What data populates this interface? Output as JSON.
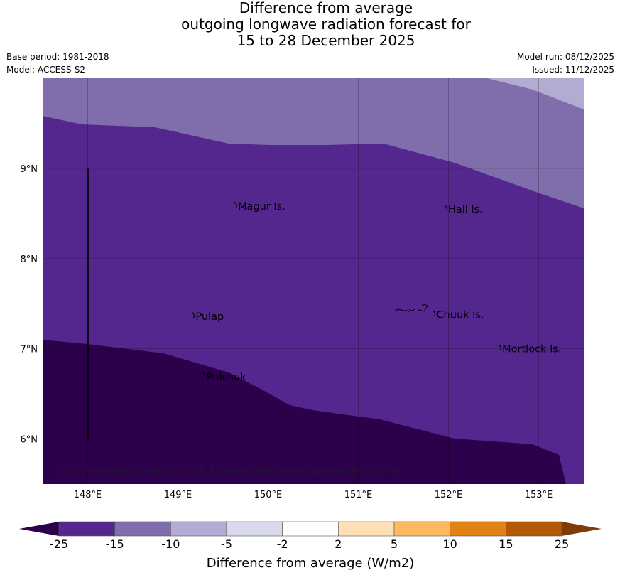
{
  "title": "Difference from average\noutgoing longwave radiation forecast for\n15 to 28 December 2025",
  "meta_left": {
    "base_period": "Base period: 1981-2018",
    "model": "Model: ACCESS-S2"
  },
  "meta_right": {
    "model_run": "Model run: 08/12/2025",
    "issued": "Issued: 11/12/2025"
  },
  "map": {
    "lon_range": [
      147.5,
      153.5
    ],
    "lat_range": [
      5.5,
      10.0
    ],
    "lat_labels": [
      {
        "value": 9,
        "text": "9°N"
      },
      {
        "value": 8,
        "text": "8°N"
      },
      {
        "value": 7,
        "text": "7°N"
      },
      {
        "value": 6,
        "text": "6°N"
      }
    ],
    "lon_labels": [
      {
        "value": 148,
        "text": "148°E"
      },
      {
        "value": 149,
        "text": "149°E"
      },
      {
        "value": 150,
        "text": "150°E"
      },
      {
        "value": 151,
        "text": "151°E"
      },
      {
        "value": 152,
        "text": "152°E"
      },
      {
        "value": 153,
        "text": "153°E"
      }
    ],
    "places": [
      {
        "name": "Magur Is.",
        "lon": 149.65,
        "lat": 8.58
      },
      {
        "name": "Hall Is.",
        "lon": 151.98,
        "lat": 8.55
      },
      {
        "name": "Pulap",
        "lon": 149.18,
        "lat": 7.36
      },
      {
        "name": "Chuuk Is.",
        "lon": 151.85,
        "lat": 7.38
      },
      {
        "name": "Mortlock Is.",
        "lon": 152.58,
        "lat": 7.0
      },
      {
        "name": "Pulusuk",
        "lon": 149.3,
        "lat": 6.69
      }
    ],
    "copyright": "© Commonwealth of Australia 2025, Bureau of Meteorology, supported by COSPPac",
    "colors": {
      "band_15_25": "#54278f",
      "band_10_15": "#7f6eab",
      "band_5_10": "#b2abd2",
      "band_below_25": "#2d004b"
    }
  },
  "colorbar": {
    "ticks": [
      "-25",
      "-15",
      "-10",
      "-5",
      "-2",
      "2",
      "5",
      "10",
      "15",
      "25"
    ],
    "colors": [
      "#54278f",
      "#7f6eab",
      "#b2abd2",
      "#d8daeb",
      "#ffffff",
      "#fee0b6",
      "#fdb863",
      "#e08214",
      "#b35806"
    ],
    "low_extend_color": "#2d004b",
    "high_extend_color": "#7f3b08",
    "label": "Difference from average (W/m2)"
  }
}
